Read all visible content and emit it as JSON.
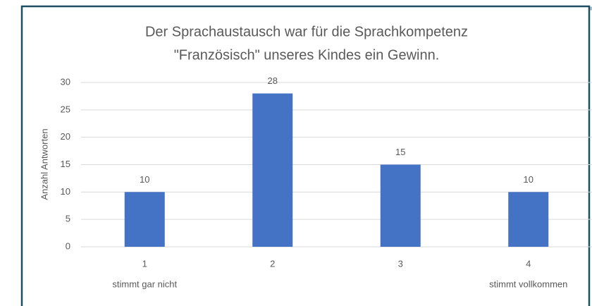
{
  "chart_data": {
    "type": "bar",
    "title": [
      "Der Sprachaustausch war für die Sprachkompetenz",
      "\"Französisch\" unseres Kindes ein Gewinn."
    ],
    "y_label": "Anzahl Antworten",
    "categories": [
      "1",
      "2",
      "3",
      "4"
    ],
    "category_sublabels": [
      "stimmt gar nicht",
      null,
      null,
      "stimmt vollkommen"
    ],
    "values": [
      10,
      28,
      15,
      10
    ],
    "color": "#4472c4",
    "ylim": [
      0,
      30
    ],
    "yticks": [
      0,
      5,
      10,
      15,
      20,
      25,
      30
    ],
    "grid": true
  }
}
